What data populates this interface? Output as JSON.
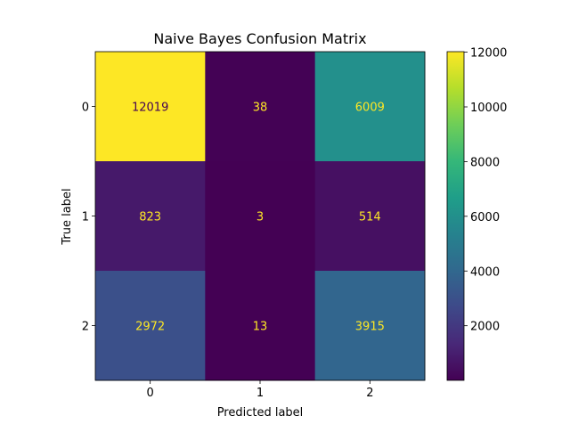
{
  "chart_data": {
    "type": "heatmap",
    "title": "Naive Bayes Confusion Matrix",
    "xlabel": "Predicted label",
    "ylabel": "True label",
    "x_categories": [
      "0",
      "1",
      "2"
    ],
    "y_categories": [
      "0",
      "1",
      "2"
    ],
    "matrix": [
      [
        12019,
        38,
        6009
      ],
      [
        823,
        3,
        514
      ],
      [
        2972,
        13,
        3915
      ]
    ],
    "colormap": "viridis",
    "colorbar": {
      "range": [
        3,
        12019
      ],
      "ticks": [
        2000,
        4000,
        6000,
        8000,
        10000,
        12000
      ]
    },
    "grid": false,
    "colors": {
      "text_on_dark": "#fde725",
      "text_on_light": "#440154"
    }
  }
}
